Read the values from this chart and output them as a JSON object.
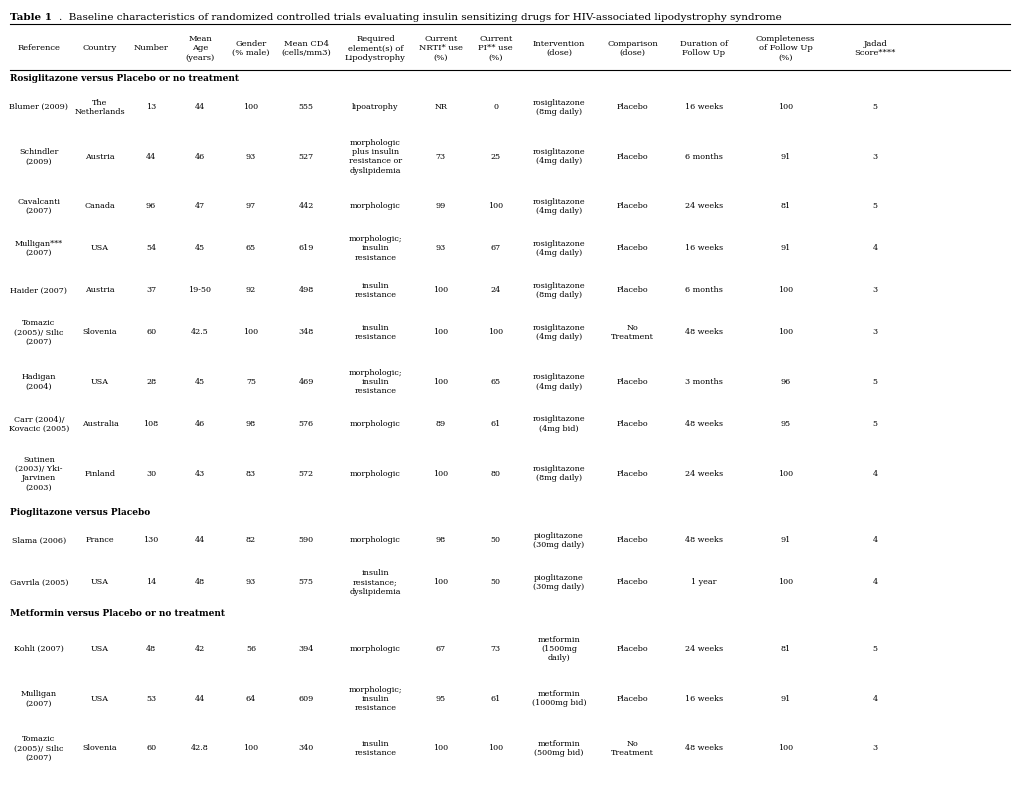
{
  "title_bold": "Table 1",
  "title_normal": ".  Baseline characteristics of randomized controlled trials evaluating insulin sensitizing drugs for HIV-associated lipodystrophy syndrome",
  "col_headers": [
    [
      "Reference",
      "",
      ""
    ],
    [
      "Country",
      "",
      ""
    ],
    [
      "Number",
      "",
      ""
    ],
    [
      "Mean\nAge\n(years)",
      "",
      ""
    ],
    [
      "Gender\n(% male)",
      "",
      ""
    ],
    [
      "Mean CD4\n(cells/mm3)",
      "",
      ""
    ],
    [
      "Required\nelement(s) of\nLipodystrophy",
      "",
      ""
    ],
    [
      "Current\nNRTI* use\n(%)",
      "",
      ""
    ],
    [
      "Current\nPI** use\n(%)",
      "",
      ""
    ],
    [
      "Intervention\n(dose)",
      "",
      ""
    ],
    [
      "Comparison\n(dose)",
      "",
      ""
    ],
    [
      "Duration of\nFollow Up",
      "",
      ""
    ],
    [
      "Completeness\nof Follow Up\n(%)",
      "",
      ""
    ],
    [
      "Jadad\nScore****",
      "",
      ""
    ]
  ],
  "section_headers": [
    "Rosiglitazone versus Placebo or no treatment",
    "Pioglitazone versus Placebo",
    "Metformin versus Placebo or no treatment"
  ],
  "rows": [
    {
      "section": "Rosiglitazone versus Placebo or no treatment",
      "ref": "Blumer (2009)",
      "country": "The\nNetherlands",
      "number": "13",
      "age": "44",
      "gender": "100",
      "cd4": "555",
      "lipodystrophy": "lipoatrophy",
      "nrti": "NR",
      "pi": "0",
      "intervention": "rosiglitazone\n(8mg daily)",
      "comparison": "Placebo",
      "duration": "16 weeks",
      "completeness": "100",
      "jadad": "5"
    },
    {
      "section": "Rosiglitazone versus Placebo or no treatment",
      "ref": "Schindler\n(2009)",
      "country": "Austria",
      "number": "44",
      "age": "46",
      "gender": "93",
      "cd4": "527",
      "lipodystrophy": "morphologic\nplus insulin\nresistance or\ndyslipidemia",
      "nrti": "73",
      "pi": "25",
      "intervention": "rosiglitazone\n(4mg daily)",
      "comparison": "Placebo",
      "duration": "6 months",
      "completeness": "91",
      "jadad": "3"
    },
    {
      "section": "Rosiglitazone versus Placebo or no treatment",
      "ref": "Cavalcanti\n(2007)",
      "country": "Canada",
      "number": "96",
      "age": "47",
      "gender": "97",
      "cd4": "442",
      "lipodystrophy": "morphologic",
      "nrti": "99",
      "pi": "100",
      "intervention": "rosiglitazone\n(4mg daily)",
      "comparison": "Placebo",
      "duration": "24 weeks",
      "completeness": "81",
      "jadad": "5"
    },
    {
      "section": "Rosiglitazone versus Placebo or no treatment",
      "ref": "Mulligan***\n(2007)",
      "country": "USA",
      "number": "54",
      "age": "45",
      "gender": "65",
      "cd4": "619",
      "lipodystrophy": "morphologic;\ninsulin\nresistance",
      "nrti": "93",
      "pi": "67",
      "intervention": "rosiglitazone\n(4mg daily)",
      "comparison": "Placebo",
      "duration": "16 weeks",
      "completeness": "91",
      "jadad": "4"
    },
    {
      "section": "Rosiglitazone versus Placebo or no treatment",
      "ref": "Haider (2007)",
      "country": "Austria",
      "number": "37",
      "age": "19-50",
      "gender": "92",
      "cd4": "498",
      "lipodystrophy": "insulin\nresistance",
      "nrti": "100",
      "pi": "24",
      "intervention": "rosiglitazone\n(8mg daily)",
      "comparison": "Placebo",
      "duration": "6 months",
      "completeness": "100",
      "jadad": "3"
    },
    {
      "section": "Rosiglitazone versus Placebo or no treatment",
      "ref": "Tomazic\n(2005)/ Silic\n(2007)",
      "country": "Slovenia",
      "number": "60",
      "age": "42.5",
      "gender": "100",
      "cd4": "348",
      "lipodystrophy": "insulin\nresistance",
      "nrti": "100",
      "pi": "100",
      "intervention": "rosiglitazone\n(4mg daily)",
      "comparison": "No\nTreatment",
      "duration": "48 weeks",
      "completeness": "100",
      "jadad": "3"
    },
    {
      "section": "Rosiglitazone versus Placebo or no treatment",
      "ref": "Hadigan\n(2004)",
      "country": "USA",
      "number": "28",
      "age": "45",
      "gender": "75",
      "cd4": "469",
      "lipodystrophy": "morphologic;\ninsulin\nresistance",
      "nrti": "100",
      "pi": "65",
      "intervention": "rosiglitazone\n(4mg daily)",
      "comparison": "Placebo",
      "duration": "3 months",
      "completeness": "96",
      "jadad": "5"
    },
    {
      "section": "Rosiglitazone versus Placebo or no treatment",
      "ref": "Carr (2004)/\nKovacic (2005)",
      "country": "Australia",
      "number": "108",
      "age": "46",
      "gender": "98",
      "cd4": "576",
      "lipodystrophy": "morphologic",
      "nrti": "89",
      "pi": "61",
      "intervention": "rosiglitazone\n(4mg bid)",
      "comparison": "Placebo",
      "duration": "48 weeks",
      "completeness": "95",
      "jadad": "5"
    },
    {
      "section": "Rosiglitazone versus Placebo or no treatment",
      "ref": "Sutinen\n(2003)/ Yki-\nJarvinen\n(2003)",
      "country": "Finland",
      "number": "30",
      "age": "43",
      "gender": "83",
      "cd4": "572",
      "lipodystrophy": "morphologic",
      "nrti": "100",
      "pi": "80",
      "intervention": "rosiglitazone\n(8mg daily)",
      "comparison": "Placebo",
      "duration": "24 weeks",
      "completeness": "100",
      "jadad": "4"
    },
    {
      "section": "Pioglitazone versus Placebo",
      "ref": "Slama (2006)",
      "country": "France",
      "number": "130",
      "age": "44",
      "gender": "82",
      "cd4": "590",
      "lipodystrophy": "morphologic",
      "nrti": "98",
      "pi": "50",
      "intervention": "pioglitazone\n(30mg daily)",
      "comparison": "Placebo",
      "duration": "48 weeks",
      "completeness": "91",
      "jadad": "4"
    },
    {
      "section": "Pioglitazone versus Placebo",
      "ref": "Gavrila (2005)",
      "country": "USA",
      "number": "14",
      "age": "48",
      "gender": "93",
      "cd4": "575",
      "lipodystrophy": "insulin\nresistance;\ndyslipidemia",
      "nrti": "100",
      "pi": "50",
      "intervention": "pioglitazone\n(30mg daily)",
      "comparison": "Placebo",
      "duration": "1 year",
      "completeness": "100",
      "jadad": "4"
    },
    {
      "section": "Metformin versus Placebo or no treatment",
      "ref": "Kohli (2007)",
      "country": "USA",
      "number": "48",
      "age": "42",
      "gender": "56",
      "cd4": "394",
      "lipodystrophy": "morphologic",
      "nrti": "67",
      "pi": "73",
      "intervention": "metformin\n(1500mg\ndaily)",
      "comparison": "Placebo",
      "duration": "24 weeks",
      "completeness": "81",
      "jadad": "5"
    },
    {
      "section": "Metformin versus Placebo or no treatment",
      "ref": "Mulligan\n(2007)",
      "country": "USA",
      "number": "53",
      "age": "44",
      "gender": "64",
      "cd4": "609",
      "lipodystrophy": "morphologic;\ninsulin\nresistance",
      "nrti": "95",
      "pi": "61",
      "intervention": "metformin\n(1000mg bid)",
      "comparison": "Placebo",
      "duration": "16 weeks",
      "completeness": "91",
      "jadad": "4"
    },
    {
      "section": "Metformin versus Placebo or no treatment",
      "ref": "Tomazic\n(2005)/ Silic\n(2007)",
      "country": "Slovenia",
      "number": "60",
      "age": "42.8",
      "gender": "100",
      "cd4": "340",
      "lipodystrophy": "insulin\nresistance",
      "nrti": "100",
      "pi": "100",
      "intervention": "metformin\n(500mg bid)",
      "comparison": "No\nTreatment",
      "duration": "48 weeks",
      "completeness": "100",
      "jadad": "3"
    }
  ]
}
